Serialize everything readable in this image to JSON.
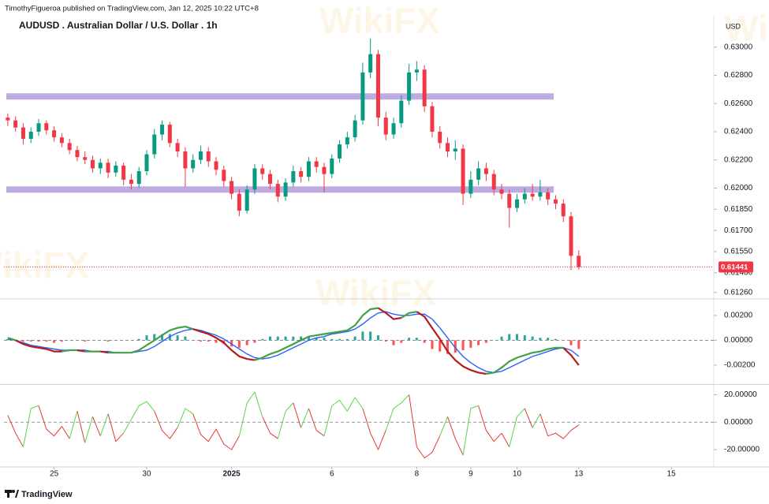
{
  "header": {
    "publisher": "TimothyFigueroa published on TradingView.com, Jan 12, 2025 10:22 UTC+8"
  },
  "footer": {
    "brand": "TradingView"
  },
  "watermark": "WikiFX",
  "chart_data": [
    {
      "type": "candlestick",
      "title": "AUDUSD . Australian Dollar / U.S. Dollar . 1h",
      "y_label": "USD",
      "up_color": "#089981",
      "down_color": "#f23645",
      "level_color": "#b39ddb",
      "xlim": [
        -0.5,
        91.5
      ],
      "ylim": [
        0.6122,
        0.6311
      ],
      "yticks": [
        {
          "value": 0.63,
          "label": "0.63000"
        },
        {
          "value": 0.628,
          "label": "0.62800"
        },
        {
          "value": 0.626,
          "label": "0.62600"
        },
        {
          "value": 0.624,
          "label": "0.62400"
        },
        {
          "value": 0.622,
          "label": "0.62200"
        },
        {
          "value": 0.62,
          "label": "0.62000"
        },
        {
          "value": 0.6185,
          "label": "0.61850"
        },
        {
          "value": 0.617,
          "label": "0.61700"
        },
        {
          "value": 0.6155,
          "label": "0.61550"
        },
        {
          "value": 0.614,
          "label": "0.61400"
        },
        {
          "value": 0.6126,
          "label": "0.61260"
        }
      ],
      "levels": [
        0.6265,
        0.6199
      ],
      "last_price": 0.61441,
      "open": [
        0.625,
        0.6248,
        0.6243,
        0.6235,
        0.624,
        0.6246,
        0.6241,
        0.6236,
        0.6232,
        0.6227,
        0.6222,
        0.622,
        0.6214,
        0.6218,
        0.6211,
        0.6216,
        0.6206,
        0.6203,
        0.6212,
        0.6224,
        0.6238,
        0.6245,
        0.6232,
        0.6226,
        0.6214,
        0.622,
        0.6226,
        0.6219,
        0.6213,
        0.6205,
        0.6196,
        0.6184,
        0.6199,
        0.6214,
        0.621,
        0.6203,
        0.6194,
        0.6204,
        0.6212,
        0.6208,
        0.6219,
        0.6215,
        0.621,
        0.6221,
        0.6231,
        0.6236,
        0.6248,
        0.6282,
        0.6295,
        0.625,
        0.6238,
        0.6246,
        0.6262,
        0.6282,
        0.6284,
        0.6258,
        0.624,
        0.6232,
        0.6226,
        0.6228,
        0.6196,
        0.6206,
        0.6214,
        0.621,
        0.6199,
        0.6196,
        0.6186,
        0.6192,
        0.6196,
        0.6194,
        0.6197,
        0.6192,
        0.6189,
        0.618,
        0.6152
      ],
      "high": [
        0.6253,
        0.6251,
        0.6246,
        0.6243,
        0.6249,
        0.6248,
        0.6244,
        0.6239,
        0.6235,
        0.623,
        0.6226,
        0.6223,
        0.6221,
        0.6221,
        0.6219,
        0.6218,
        0.621,
        0.6215,
        0.6227,
        0.6242,
        0.6248,
        0.6247,
        0.6235,
        0.6229,
        0.6224,
        0.623,
        0.6229,
        0.6222,
        0.6216,
        0.6208,
        0.6199,
        0.6202,
        0.6217,
        0.6217,
        0.6213,
        0.6206,
        0.6207,
        0.6216,
        0.6215,
        0.6222,
        0.6222,
        0.6218,
        0.6224,
        0.6234,
        0.624,
        0.6252,
        0.6289,
        0.6306,
        0.6298,
        0.6254,
        0.625,
        0.6266,
        0.6288,
        0.629,
        0.6287,
        0.6261,
        0.6244,
        0.6236,
        0.6234,
        0.6231,
        0.6212,
        0.6219,
        0.6218,
        0.6213,
        0.6203,
        0.6199,
        0.6196,
        0.62,
        0.6203,
        0.6206,
        0.62,
        0.6195,
        0.6192,
        0.6183,
        0.6156
      ],
      "low": [
        0.6244,
        0.624,
        0.6231,
        0.6232,
        0.6237,
        0.6238,
        0.6233,
        0.6229,
        0.6224,
        0.6219,
        0.6217,
        0.6211,
        0.621,
        0.6207,
        0.6208,
        0.6202,
        0.6199,
        0.62,
        0.6209,
        0.6221,
        0.6234,
        0.6229,
        0.6222,
        0.6201,
        0.6211,
        0.6217,
        0.6215,
        0.6209,
        0.6201,
        0.6192,
        0.618,
        0.6182,
        0.6196,
        0.6206,
        0.6199,
        0.619,
        0.6191,
        0.6201,
        0.6204,
        0.6205,
        0.6211,
        0.6197,
        0.6207,
        0.6218,
        0.6228,
        0.6233,
        0.6245,
        0.6278,
        0.6244,
        0.6234,
        0.6235,
        0.6243,
        0.6259,
        0.6276,
        0.6254,
        0.6236,
        0.6228,
        0.6222,
        0.622,
        0.6188,
        0.6193,
        0.6202,
        0.6205,
        0.6195,
        0.6192,
        0.6172,
        0.6183,
        0.6189,
        0.6191,
        0.6191,
        0.6188,
        0.6185,
        0.6176,
        0.6142,
        0.6142
      ],
      "close": [
        0.6248,
        0.6243,
        0.6235,
        0.624,
        0.6246,
        0.6241,
        0.6236,
        0.6232,
        0.6227,
        0.6222,
        0.622,
        0.6214,
        0.6218,
        0.6211,
        0.6216,
        0.6206,
        0.6203,
        0.6212,
        0.6224,
        0.6238,
        0.6245,
        0.6232,
        0.6226,
        0.6214,
        0.622,
        0.6226,
        0.6219,
        0.6213,
        0.6205,
        0.6196,
        0.6184,
        0.6199,
        0.6214,
        0.621,
        0.6203,
        0.6194,
        0.6204,
        0.6212,
        0.6208,
        0.6219,
        0.6215,
        0.621,
        0.6221,
        0.6231,
        0.6236,
        0.6248,
        0.6282,
        0.6295,
        0.625,
        0.6238,
        0.6246,
        0.6262,
        0.6282,
        0.6284,
        0.6258,
        0.624,
        0.6232,
        0.6226,
        0.6228,
        0.6196,
        0.6206,
        0.6214,
        0.621,
        0.6199,
        0.6196,
        0.6186,
        0.6192,
        0.6196,
        0.6194,
        0.6197,
        0.6192,
        0.6189,
        0.618,
        0.6152,
        0.6144
      ]
    },
    {
      "type": "macd",
      "up_color": "#43a047",
      "down_color": "#b71c1c",
      "signal_color": "#2962ff",
      "histogram_up_color": "#26a69a",
      "histogram_down_color": "#ff5252",
      "zero_line": true,
      "xlim": [
        -0.5,
        91.5
      ],
      "ylim": [
        -0.0034,
        0.0032
      ],
      "yticks": [
        {
          "value": 0.002,
          "label": "0.00200"
        },
        {
          "value": 0,
          "label": "0.00000"
        },
        {
          "value": -0.002,
          "label": "-0.00200"
        }
      ],
      "macd": [
        0.0002,
        0,
        -0.0003,
        -0.0005,
        -0.0006,
        -0.0007,
        -0.0009,
        -0.0009,
        -0.0008,
        -0.0008,
        -0.0009,
        -0.0009,
        -0.0009,
        -0.001,
        -0.001,
        -0.001,
        -0.001,
        -0.0008,
        -0.0004,
        0,
        0.0004,
        0.0008,
        0.001,
        0.0011,
        0.0009,
        0.0007,
        0.0005,
        0.0002,
        -0.0002,
        -0.0008,
        -0.0013,
        -0.0015,
        -0.0016,
        -0.0014,
        -0.0011,
        -0.0009,
        -0.0006,
        -0.0003,
        0,
        0.0003,
        0.0004,
        0.0005,
        0.0006,
        0.0007,
        0.0008,
        0.0012,
        0.002,
        0.0025,
        0.0026,
        0.0022,
        0.0017,
        0.0018,
        0.0022,
        0.0023,
        0.0019,
        0.001,
        0.0001,
        -0.0009,
        -0.0016,
        -0.0021,
        -0.0024,
        -0.0026,
        -0.0027,
        -0.0026,
        -0.0022,
        -0.0017,
        -0.0014,
        -0.0012,
        -0.001,
        -0.0009,
        -0.0007,
        -0.0006,
        -0.0006,
        -0.0012,
        -0.002
      ],
      "signal": [
        0.0001,
        0,
        -0.0002,
        -0.0004,
        -0.0005,
        -0.0006,
        -0.0007,
        -0.0008,
        -0.0008,
        -0.0008,
        -0.0008,
        -0.0009,
        -0.0009,
        -0.0009,
        -0.001,
        -0.001,
        -0.001,
        -0.0009,
        -0.0008,
        -0.0005,
        -0.0001,
        0.0003,
        0.0006,
        0.0008,
        0.0009,
        0.0008,
        0.0006,
        0.0004,
        0.0001,
        -0.0003,
        -0.0007,
        -0.0011,
        -0.0014,
        -0.0015,
        -0.0014,
        -0.0012,
        -0.0009,
        -0.0006,
        -0.0003,
        0,
        0.0002,
        0.0003,
        0.0005,
        0.0006,
        0.0007,
        0.0009,
        0.0013,
        0.0018,
        0.0022,
        0.0023,
        0.0021,
        0.002,
        0.002,
        0.0021,
        0.0021,
        0.0017,
        0.001,
        0.0002,
        -0.0006,
        -0.0013,
        -0.0018,
        -0.0022,
        -0.0025,
        -0.0026,
        -0.0025,
        -0.0022,
        -0.0019,
        -0.0016,
        -0.0013,
        -0.0011,
        -0.0009,
        -0.0007,
        -0.0006,
        -0.0008,
        -0.0013
      ],
      "histogram": [
        0.0001,
        0,
        -0.0001,
        -0.0001,
        -0.0001,
        -0.0001,
        -0.0002,
        -0.0001,
        0,
        0,
        -0.0001,
        0,
        0,
        -0.0001,
        0,
        0,
        0,
        0.0001,
        0.0004,
        0.0005,
        0.0005,
        0.0005,
        0.0004,
        0.0003,
        0,
        -0.0001,
        -0.0001,
        -0.0002,
        -0.0003,
        -0.0005,
        -0.0006,
        -0.0004,
        -0.0002,
        0.0001,
        0.0003,
        0.0003,
        0.0003,
        0.0003,
        0.0003,
        0.0003,
        0.0002,
        0.0002,
        0.0001,
        0.0001,
        0.0001,
        0.0003,
        0.0007,
        0.0007,
        0.0004,
        -0.0001,
        -0.0004,
        -0.0002,
        0.0002,
        0.0002,
        -0.0002,
        -0.0007,
        -0.0009,
        -0.0011,
        -0.001,
        -0.0008,
        -0.0006,
        -0.0004,
        -0.0002,
        0,
        0.0003,
        0.0005,
        0.0005,
        0.0004,
        0.0003,
        0.0002,
        0.0002,
        0.0001,
        0,
        -0.0004,
        -0.0007
      ]
    },
    {
      "type": "line",
      "up_color": "#5bd44a",
      "down_color": "#e53935",
      "zero_line": true,
      "xlim": [
        -0.5,
        91.5
      ],
      "ylim": [
        -32,
        26
      ],
      "yticks": [
        {
          "value": 20,
          "label": "20.00000"
        },
        {
          "value": 0,
          "label": "0.00000"
        },
        {
          "value": -20,
          "label": "-20.00000"
        }
      ],
      "xticks": [
        {
          "value": 6,
          "label": "25"
        },
        {
          "value": 18,
          "label": "30"
        },
        {
          "value": 29,
          "label": "2025"
        },
        {
          "value": 42,
          "label": "6"
        },
        {
          "value": 53,
          "label": "8"
        },
        {
          "value": 60,
          "label": "9"
        },
        {
          "value": 66,
          "label": "10"
        },
        {
          "value": 74,
          "label": "13"
        },
        {
          "value": 86,
          "label": "15"
        }
      ],
      "values": [
        5,
        -8,
        -18,
        10,
        12,
        -5,
        -10,
        -3,
        -12,
        8,
        -15,
        4,
        -10,
        6,
        -14,
        -8,
        2,
        12,
        15,
        8,
        -6,
        -12,
        -4,
        10,
        6,
        -9,
        -14,
        -5,
        -16,
        -20,
        -10,
        14,
        22,
        4,
        -8,
        -12,
        8,
        14,
        -4,
        10,
        -6,
        -10,
        12,
        16,
        8,
        18,
        10,
        -8,
        -20,
        -6,
        10,
        14,
        20,
        -18,
        -26,
        -22,
        -10,
        4,
        -12,
        -24,
        10,
        12,
        -6,
        -14,
        -8,
        -18,
        4,
        10,
        -4,
        6,
        -10,
        -8,
        -12,
        -6,
        -2
      ]
    }
  ]
}
